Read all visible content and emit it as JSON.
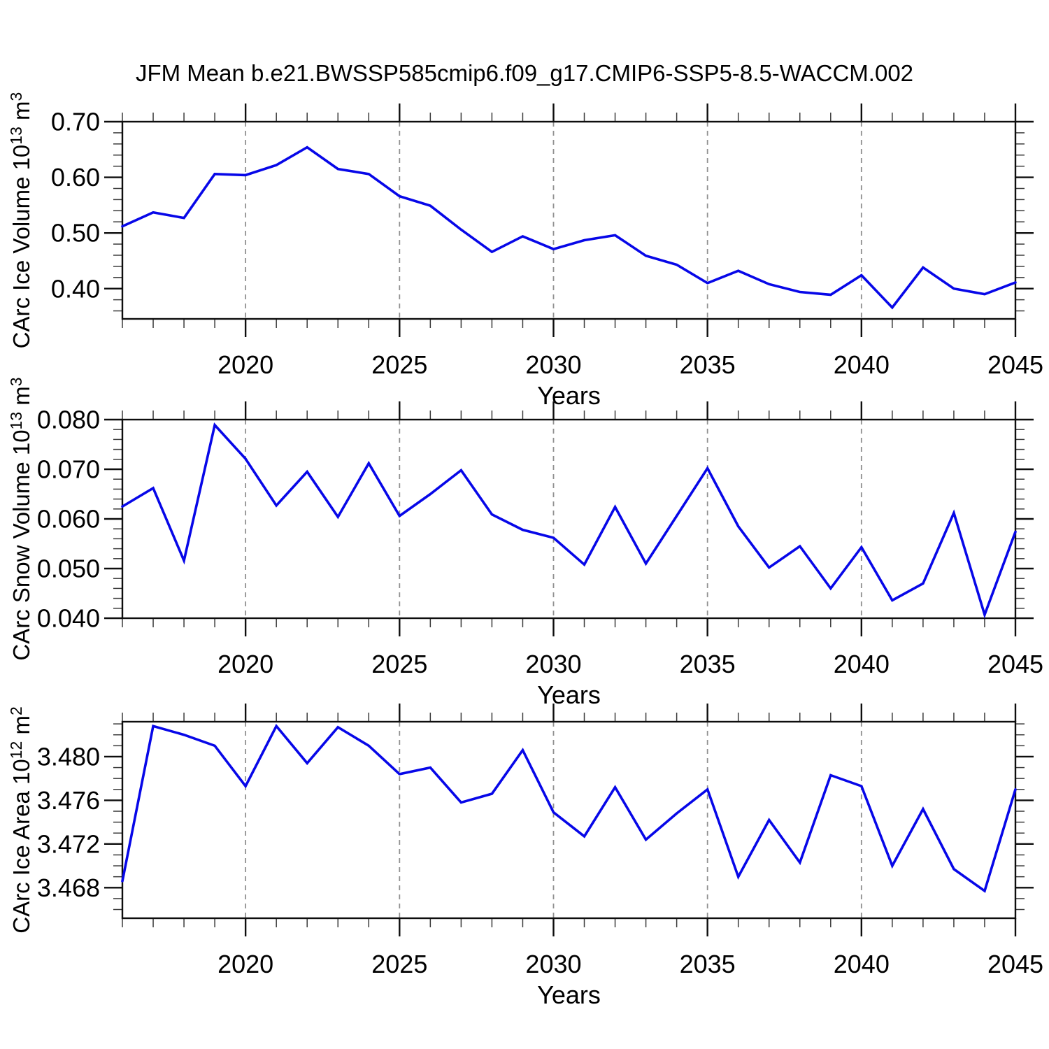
{
  "title": "JFM Mean b.e21.BWSSP585cmip6.f09_g17.CMIP6-SSP5-8.5-WACCM.002",
  "colors": {
    "line": "#0707e8",
    "frame": "#0d0d0d",
    "major_tick": "#0d0d0d",
    "minor_tick": "#3a3a3a",
    "grid": "#909090",
    "text": "#000000",
    "background": "#ffffff"
  },
  "chart_data": [
    {
      "type": "line",
      "panel": 1,
      "title": "",
      "xlabel": "Years",
      "ylabel": "CArc Ice Volume 10^13 m^3",
      "ylabel_parts": [
        {
          "t": "CArc Ice Volume 10"
        },
        {
          "t": "13",
          "sup": true
        },
        {
          "t": " m"
        },
        {
          "t": "3",
          "sup": true
        }
      ],
      "x": [
        2016,
        2017,
        2018,
        2019,
        2020,
        2021,
        2022,
        2023,
        2024,
        2025,
        2026,
        2027,
        2028,
        2029,
        2030,
        2031,
        2032,
        2033,
        2034,
        2035,
        2036,
        2037,
        2038,
        2039,
        2040,
        2041,
        2042,
        2043,
        2044,
        2045
      ],
      "values": [
        0.512,
        0.537,
        0.527,
        0.606,
        0.604,
        0.622,
        0.654,
        0.615,
        0.606,
        0.566,
        0.549,
        0.506,
        0.466,
        0.494,
        0.471,
        0.487,
        0.496,
        0.459,
        0.443,
        0.41,
        0.432,
        0.408,
        0.394,
        0.389,
        0.424,
        0.366,
        0.438,
        0.4,
        0.39,
        0.411
      ],
      "xlim": [
        2016,
        2045
      ],
      "ylim": [
        0.3456,
        0.7
      ],
      "xticks": [
        2020,
        2025,
        2030,
        2035,
        2040,
        2045
      ],
      "xtick_labels": [
        "2020",
        "2025",
        "2030",
        "2035",
        "2040",
        "2045"
      ],
      "grid_x": [
        2020,
        2025,
        2030,
        2035,
        2040
      ],
      "yticks": [
        0.4,
        0.5,
        0.6,
        0.7
      ],
      "ytick_labels": [
        "0.40",
        "0.50",
        "0.60",
        "0.70"
      ],
      "yminor_step": 0.02
    },
    {
      "type": "line",
      "panel": 2,
      "title": "",
      "xlabel": "Years",
      "ylabel": "CArc Snow Volume 10^13 m^3",
      "ylabel_parts": [
        {
          "t": "CArc Snow Volume 10"
        },
        {
          "t": "13",
          "sup": true
        },
        {
          "t": " m"
        },
        {
          "t": "3",
          "sup": true
        }
      ],
      "x": [
        2016,
        2017,
        2018,
        2019,
        2020,
        2021,
        2022,
        2023,
        2024,
        2025,
        2026,
        2027,
        2028,
        2029,
        2030,
        2031,
        2032,
        2033,
        2034,
        2035,
        2036,
        2037,
        2038,
        2039,
        2040,
        2041,
        2042,
        2043,
        2044,
        2045
      ],
      "values": [
        0.0625,
        0.0662,
        0.0516,
        0.0789,
        0.0721,
        0.0627,
        0.0695,
        0.0604,
        0.0712,
        0.0606,
        0.065,
        0.0698,
        0.0609,
        0.0578,
        0.0562,
        0.0508,
        0.0624,
        0.051,
        0.0606,
        0.0702,
        0.0585,
        0.0502,
        0.0545,
        0.046,
        0.0543,
        0.0436,
        0.047,
        0.0612,
        0.0407,
        0.0574
      ],
      "xlim": [
        2016,
        2045
      ],
      "ylim": [
        0.04,
        0.08
      ],
      "xticks": [
        2020,
        2025,
        2030,
        2035,
        2040,
        2045
      ],
      "xtick_labels": [
        "2020",
        "2025",
        "2030",
        "2035",
        "2040",
        "2045"
      ],
      "grid_x": [
        2020,
        2025,
        2030,
        2035,
        2040
      ],
      "yticks": [
        0.04,
        0.05,
        0.06,
        0.07,
        0.08
      ],
      "ytick_labels": [
        "0.040",
        "0.050",
        "0.060",
        "0.070",
        "0.080"
      ],
      "yminor_step": 0.002
    },
    {
      "type": "line",
      "panel": 3,
      "title": "",
      "xlabel": "Years",
      "ylabel": "CArc Ice Area 10^12 m^2",
      "ylabel_parts": [
        {
          "t": "CArc Ice Area 10"
        },
        {
          "t": "12",
          "sup": true
        },
        {
          "t": " m"
        },
        {
          "t": "2",
          "sup": true
        }
      ],
      "x": [
        2016,
        2017,
        2018,
        2019,
        2020,
        2021,
        2022,
        2023,
        2024,
        2025,
        2026,
        2027,
        2028,
        2029,
        2030,
        2031,
        2032,
        2033,
        2034,
        2035,
        2036,
        2037,
        2038,
        2039,
        2040,
        2041,
        2042,
        2043,
        2044,
        2045
      ],
      "values": [
        3.4686,
        3.4828,
        3.482,
        3.481,
        3.4773,
        3.4828,
        3.4794,
        3.4827,
        3.481,
        3.4784,
        3.479,
        3.4758,
        3.4766,
        3.4806,
        3.4749,
        3.4727,
        3.4772,
        3.4724,
        3.4748,
        3.477,
        3.469,
        3.4742,
        3.4703,
        3.4783,
        3.4773,
        3.47,
        3.4752,
        3.4697,
        3.4677,
        3.477
      ],
      "xlim": [
        2016,
        2045
      ],
      "ylim": [
        3.4652,
        3.4832
      ],
      "xticks": [
        2020,
        2025,
        2030,
        2035,
        2040,
        2045
      ],
      "xtick_labels": [
        "2020",
        "2025",
        "2030",
        "2035",
        "2040",
        "2045"
      ],
      "grid_x": [
        2020,
        2025,
        2030,
        2035,
        2040
      ],
      "yticks": [
        3.468,
        3.472,
        3.476,
        3.48
      ],
      "ytick_labels": [
        "3.468",
        "3.472",
        "3.476",
        "3.480"
      ],
      "yminor_step": 0.001
    }
  ]
}
